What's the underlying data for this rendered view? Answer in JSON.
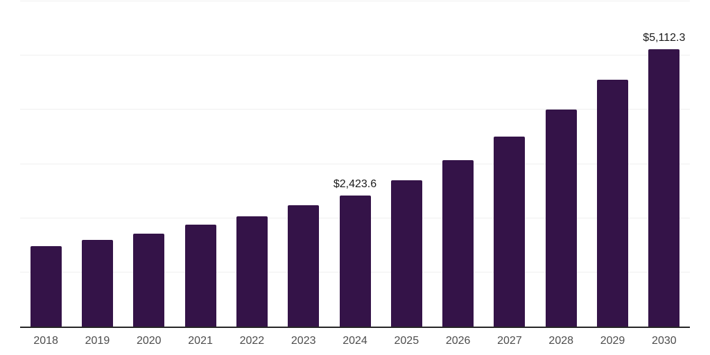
{
  "chart_data": {
    "type": "bar",
    "title": "",
    "xlabel": "",
    "ylabel": "",
    "categories": [
      "2018",
      "2019",
      "2020",
      "2021",
      "2022",
      "2023",
      "2024",
      "2025",
      "2026",
      "2027",
      "2028",
      "2029",
      "2030"
    ],
    "values": [
      1480,
      1600,
      1720,
      1880,
      2035,
      2240,
      2423.6,
      2705,
      3070,
      3505,
      4000,
      4550,
      5112.3
    ],
    "point_labels": [
      "",
      "",
      "",
      "",
      "",
      "",
      "$2,423.6",
      "",
      "",
      "",
      "",
      "",
      "$5,112.3"
    ],
    "ylim": [
      0,
      6000
    ],
    "gridline_step": 1000,
    "grid": true,
    "legend": false,
    "y_axis_labels_visible": false,
    "colors": {
      "bar": "#341348",
      "axis": "#262626",
      "gridline": "#f0f0f0",
      "tick_label": "#4d4d4d",
      "data_label": "#1a1a1a",
      "background": "#ffffff"
    }
  }
}
